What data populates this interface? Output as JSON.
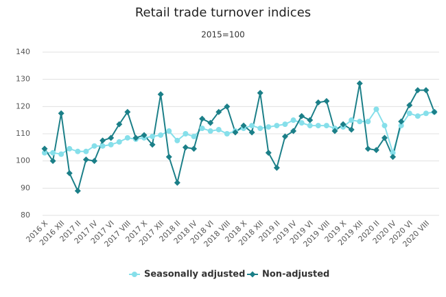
{
  "chart_data": {
    "type": "line",
    "title": "Retail trade turnover indices",
    "subtitle": "2015=100",
    "categories": [
      "2016 X",
      null,
      "2016 XII",
      null,
      "2017 II",
      null,
      "2017 IV",
      null,
      "2017 VI",
      null,
      "2017 VIII",
      null,
      "2017 X",
      null,
      "2017 XII",
      null,
      "2018 II",
      null,
      "2018 IV",
      null,
      "2018 VI",
      null,
      "2018 VIII",
      null,
      "2018 X",
      null,
      "2018 XII",
      null,
      "2019 II",
      null,
      "2019 IV",
      null,
      "2019 VI",
      null,
      "2019 VIII",
      null,
      "2019 X",
      null,
      "2019 XII",
      null,
      "2020 II",
      null,
      "2020 IV",
      null,
      "2020 VI",
      null,
      "2020 VIII",
      null
    ],
    "series": [
      {
        "name": "Seasonally adjusted",
        "color": "#86dfea",
        "marker": "circle",
        "values": [
          103,
          103,
          102.5,
          104.5,
          103.5,
          103.5,
          105.5,
          105.5,
          106,
          107,
          108.5,
          108,
          108.5,
          109,
          109.5,
          111,
          107.5,
          110,
          109,
          112,
          111,
          111.5,
          110,
          111,
          112,
          113,
          112,
          112.5,
          113,
          113.5,
          115,
          114,
          113,
          113,
          113,
          112,
          112.5,
          115,
          114.5,
          114.5,
          119,
          113,
          103,
          113,
          117.5,
          116.5,
          117.5,
          118
        ]
      },
      {
        "name": "Non-adjusted",
        "color": "#1b7f88",
        "marker": "diamond",
        "values": [
          104.5,
          100,
          117.5,
          95.5,
          89,
          100.5,
          100,
          107.5,
          108.5,
          113.5,
          118,
          108.5,
          109.5,
          106,
          124.5,
          101.5,
          92,
          105,
          104.5,
          115.5,
          114,
          118,
          120,
          110.5,
          113,
          110.5,
          125,
          103,
          97.5,
          109,
          111,
          116.5,
          115,
          121.5,
          122,
          111,
          113.5,
          111.5,
          128.5,
          104.5,
          104,
          108.5,
          101.5,
          114.5,
          120.5,
          126,
          126,
          118
        ]
      }
    ],
    "ylim": [
      80,
      140
    ],
    "yticks": [
      80,
      90,
      100,
      110,
      120,
      130,
      140
    ],
    "grid": true
  }
}
